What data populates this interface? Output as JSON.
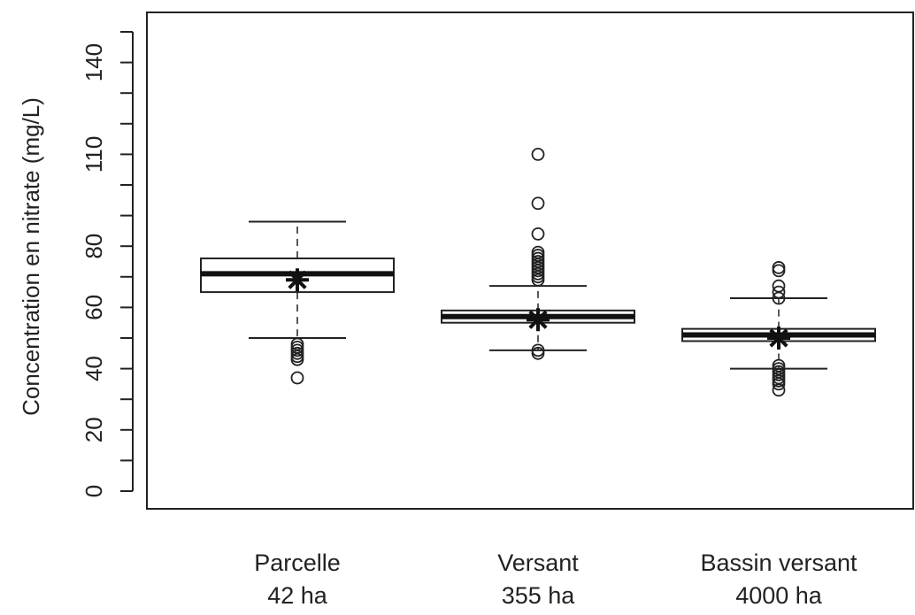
{
  "chart_data": {
    "type": "boxplot",
    "title": "",
    "xlabel": "",
    "ylabel": "Concentration en nitrate (mg/L)",
    "ylim": [
      -5,
      157
    ],
    "y_ticks": [
      0,
      20,
      40,
      60,
      80,
      110,
      140
    ],
    "y_tick_labels": [
      "0",
      "20",
      "40",
      "60",
      "80",
      "110",
      "140"
    ],
    "y_minor_ticks": [
      10,
      30,
      50,
      70,
      90,
      100,
      120,
      130,
      150
    ],
    "categories": [
      {
        "line1": "Parcelle",
        "line2": "42 ha"
      },
      {
        "line1": "Versant",
        "line2": "355 ha"
      },
      {
        "line1": "Bassin versant",
        "line2": "4000 ha"
      }
    ],
    "boxes": [
      {
        "whisker_low": 50,
        "q1": 65,
        "median": 71,
        "q3": 76,
        "whisker_high": 88,
        "mean": 69,
        "outliers": [
          37,
          43,
          44,
          45,
          46,
          47,
          48
        ]
      },
      {
        "whisker_low": 46,
        "q1": 55,
        "median": 57,
        "q3": 59,
        "whisker_high": 67,
        "mean": 56,
        "outliers": [
          45,
          46,
          69,
          70,
          71,
          72,
          73,
          74,
          75,
          76,
          77,
          78,
          84,
          94,
          110
        ]
      },
      {
        "whisker_low": 40,
        "q1": 49,
        "median": 51,
        "q3": 53,
        "whisker_high": 63,
        "mean": 50,
        "outliers": [
          33,
          35,
          36,
          37,
          38,
          39,
          40,
          41,
          63,
          65,
          67,
          72,
          73
        ]
      }
    ]
  }
}
